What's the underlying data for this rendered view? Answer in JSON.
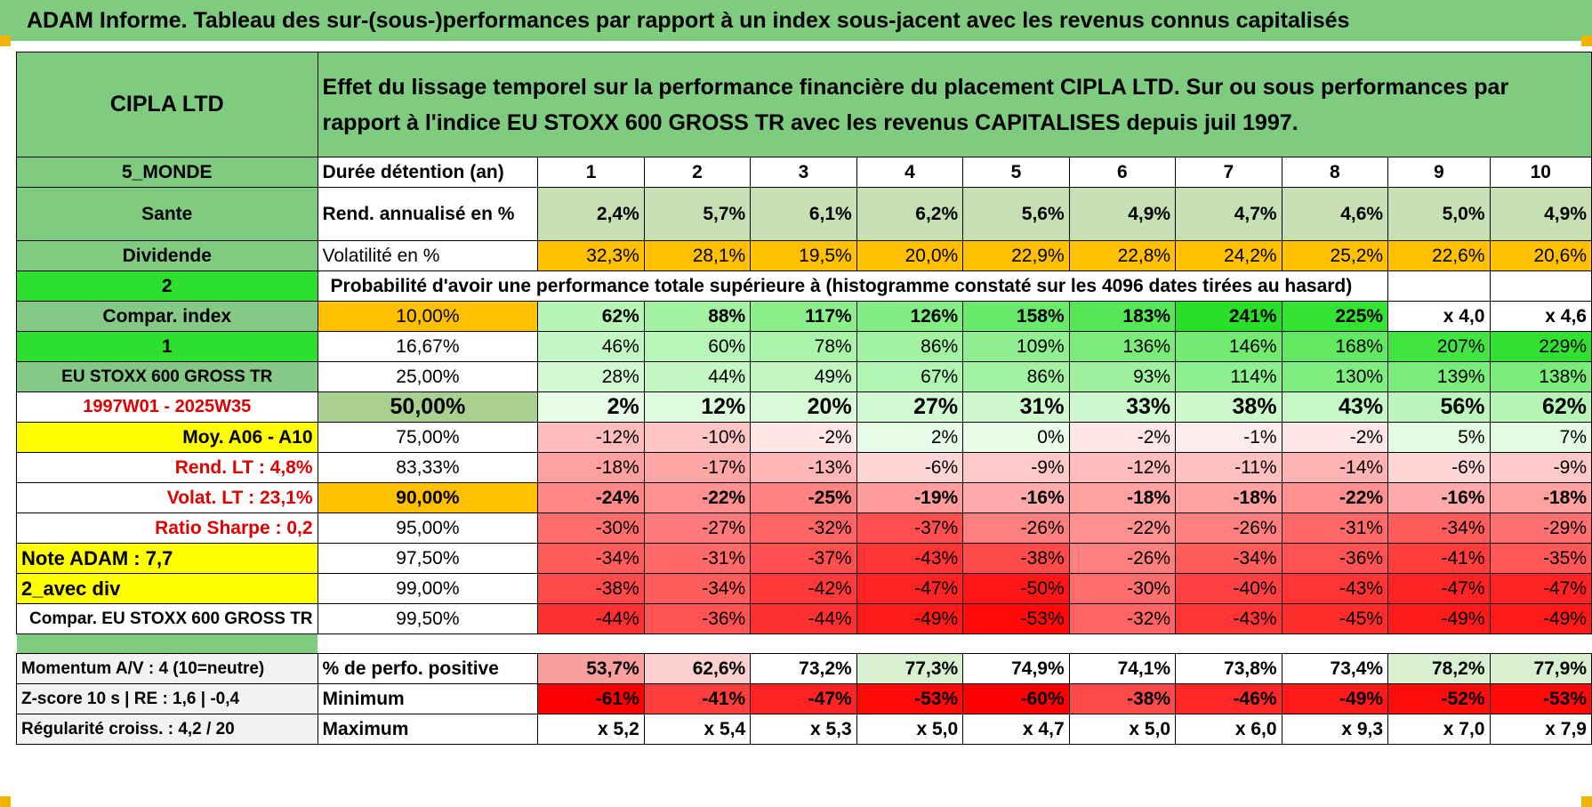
{
  "title": "ADAM Informe. Tableau des sur-(sous-)performances par rapport à un index sous-jacent avec les revenus connus capitalisés",
  "header": {
    "company": "CIPLA LTD",
    "description": "Effet du lissage temporel sur la performance financière du placement CIPLA LTD. Sur ou sous performances par rapport à l'indice EU STOXX 600 GROSS TR avec les revenus CAPITALISES depuis juil 1997."
  },
  "side": {
    "zone": "5_MONDE",
    "sector": "Sante",
    "type": "Dividende",
    "val2": "2",
    "compar_label": "Compar. index",
    "val1": "1",
    "index_name": "EU STOXX 600 GROSS TR",
    "period": "1997W01 - 2025W35",
    "moy": "Moy. A06 - A10",
    "rend_lt": "Rend. LT :    4,8%",
    "volat_lt": "Volat. LT :    23,1%",
    "sharpe": "Ratio Sharpe :     0,2",
    "note": "Note ADAM : 7,7",
    "avec_div": "2_avec div",
    "compar_eu": "Compar. EU STOXX 600 GROSS TR",
    "momentum": "Momentum A/V : 4 (10=neutre)",
    "zscore": "Z-score 10 s | RE : 1,6 | -0,4",
    "regularite": "Régularité croiss. : 4,2 / 20"
  },
  "labels": {
    "duree": "Durée détention (an)",
    "rend": "Rend. annualisé en %",
    "vol": "Volatilité en %",
    "proba": "Probabilité d'avoir une performance totale supérieure à (histogramme constaté sur les 4096 dates tirées au hasard)",
    "perf_pos": "% de perfo. positive",
    "minimum": "Minimum",
    "maximum": "Maximum"
  },
  "years": [
    "1",
    "2",
    "3",
    "4",
    "5",
    "6",
    "7",
    "8",
    "9",
    "10"
  ],
  "rend": [
    "2,4%",
    "5,7%",
    "6,1%",
    "6,2%",
    "5,6%",
    "4,9%",
    "4,7%",
    "4,6%",
    "5,0%",
    "4,9%"
  ],
  "vol": [
    "32,3%",
    "28,1%",
    "19,5%",
    "20,0%",
    "22,9%",
    "22,8%",
    "24,2%",
    "25,2%",
    "22,6%",
    "20,6%"
  ],
  "percentile_rows": [
    {
      "p": "10,00%",
      "v": [
        "62%",
        "88%",
        "117%",
        "126%",
        "158%",
        "183%",
        "241%",
        "225%",
        "x 4,0",
        "x 4,6"
      ]
    },
    {
      "p": "16,67%",
      "v": [
        "46%",
        "60%",
        "78%",
        "86%",
        "109%",
        "136%",
        "146%",
        "168%",
        "207%",
        "229%"
      ]
    },
    {
      "p": "25,00%",
      "v": [
        "28%",
        "44%",
        "49%",
        "67%",
        "86%",
        "93%",
        "114%",
        "130%",
        "139%",
        "138%"
      ]
    },
    {
      "p": "50,00%",
      "v": [
        "2%",
        "12%",
        "20%",
        "27%",
        "31%",
        "33%",
        "38%",
        "43%",
        "56%",
        "62%"
      ]
    },
    {
      "p": "75,00%",
      "v": [
        "-12%",
        "-10%",
        "-2%",
        "2%",
        "0%",
        "-2%",
        "-1%",
        "-2%",
        "5%",
        "7%"
      ]
    },
    {
      "p": "83,33%",
      "v": [
        "-18%",
        "-17%",
        "-13%",
        "-6%",
        "-9%",
        "-12%",
        "-11%",
        "-14%",
        "-6%",
        "-9%"
      ]
    },
    {
      "p": "90,00%",
      "v": [
        "-24%",
        "-22%",
        "-25%",
        "-19%",
        "-16%",
        "-18%",
        "-18%",
        "-22%",
        "-16%",
        "-18%"
      ]
    },
    {
      "p": "95,00%",
      "v": [
        "-30%",
        "-27%",
        "-32%",
        "-37%",
        "-26%",
        "-22%",
        "-26%",
        "-31%",
        "-34%",
        "-29%"
      ]
    },
    {
      "p": "97,50%",
      "v": [
        "-34%",
        "-31%",
        "-37%",
        "-43%",
        "-38%",
        "-26%",
        "-34%",
        "-36%",
        "-41%",
        "-35%"
      ]
    },
    {
      "p": "99,00%",
      "v": [
        "-38%",
        "-34%",
        "-42%",
        "-47%",
        "-50%",
        "-30%",
        "-40%",
        "-43%",
        "-47%",
        "-47%"
      ]
    },
    {
      "p": "99,50%",
      "v": [
        "-44%",
        "-36%",
        "-44%",
        "-49%",
        "-53%",
        "-32%",
        "-43%",
        "-45%",
        "-49%",
        "-49%"
      ]
    }
  ],
  "perf_pos": [
    "53,7%",
    "62,6%",
    "73,2%",
    "77,3%",
    "74,9%",
    "74,1%",
    "73,8%",
    "73,4%",
    "78,2%",
    "77,9%"
  ],
  "minimum": [
    "-61%",
    "-41%",
    "-47%",
    "-53%",
    "-60%",
    "-38%",
    "-46%",
    "-49%",
    "-52%",
    "-53%"
  ],
  "maximum": [
    "x 5,2",
    "x 5,4",
    "x 5,3",
    "x 5,0",
    "x 4,7",
    "x 5,0",
    "x 6,0",
    "x 9,3",
    "x 7,0",
    "x 7,9"
  ]
}
